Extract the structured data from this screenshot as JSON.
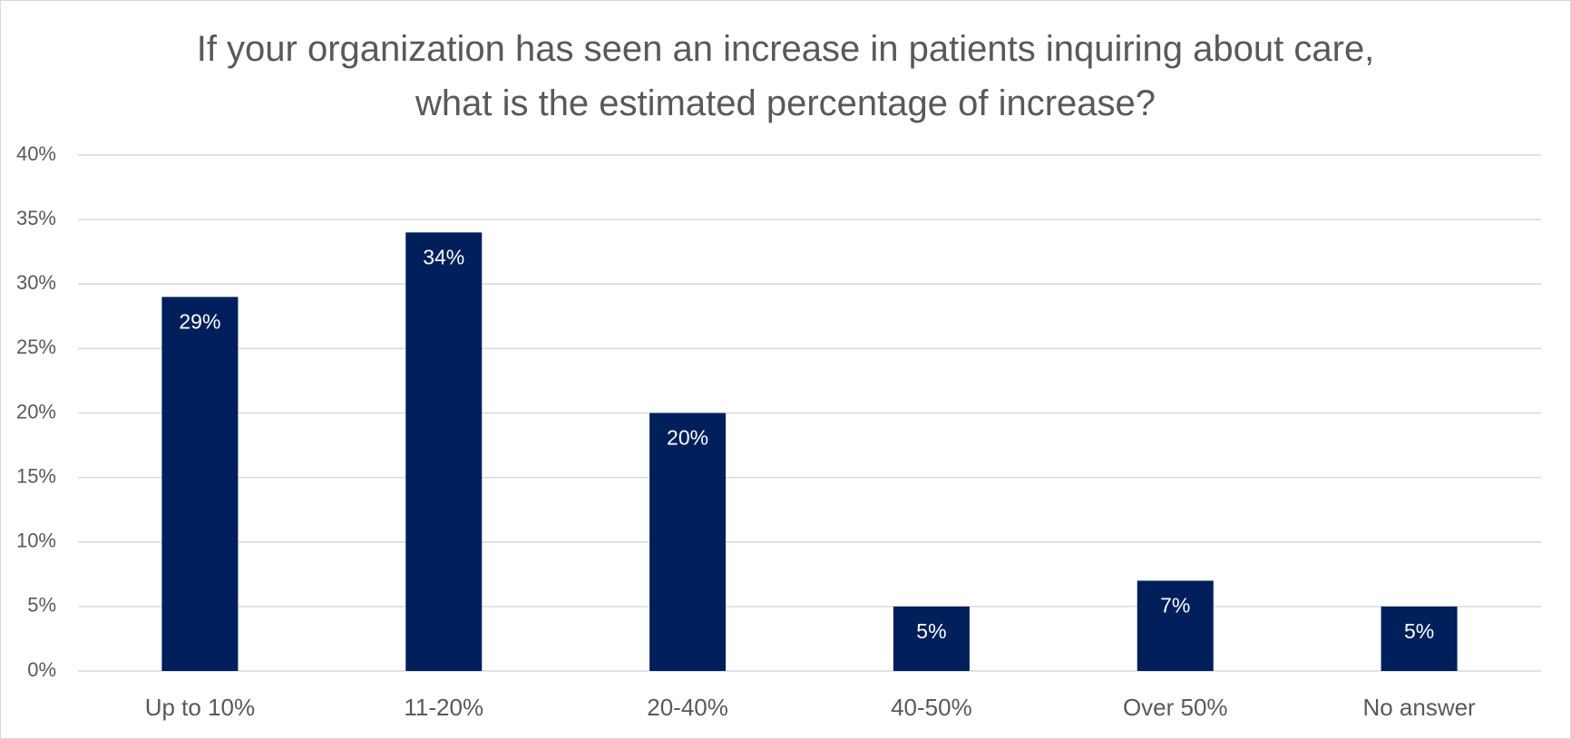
{
  "chart_data": {
    "type": "bar",
    "title": "If your organization has seen an increase in patients inquiring about care, what is the estimated percentage of increase?",
    "categories": [
      "Up to 10%",
      "11-20%",
      "20-40%",
      "40-50%",
      "Over 50%",
      "No answer"
    ],
    "values": [
      29,
      34,
      20,
      5,
      7,
      5
    ],
    "value_labels": [
      "29%",
      "34%",
      "20%",
      "5%",
      "7%",
      "5%"
    ],
    "color": "#001f5b",
    "ylim": [
      0,
      40
    ],
    "yticks": [
      {
        "value": 0,
        "label": "0%"
      },
      {
        "value": 5,
        "label": "5%"
      },
      {
        "value": 10,
        "label": "10%"
      },
      {
        "value": 15,
        "label": "15%"
      },
      {
        "value": 20,
        "label": "20%"
      },
      {
        "value": 25,
        "label": "25%"
      },
      {
        "value": 30,
        "label": "30%"
      },
      {
        "value": 35,
        "label": "35%"
      },
      {
        "value": 40,
        "label": "40%"
      }
    ],
    "grid": true
  }
}
